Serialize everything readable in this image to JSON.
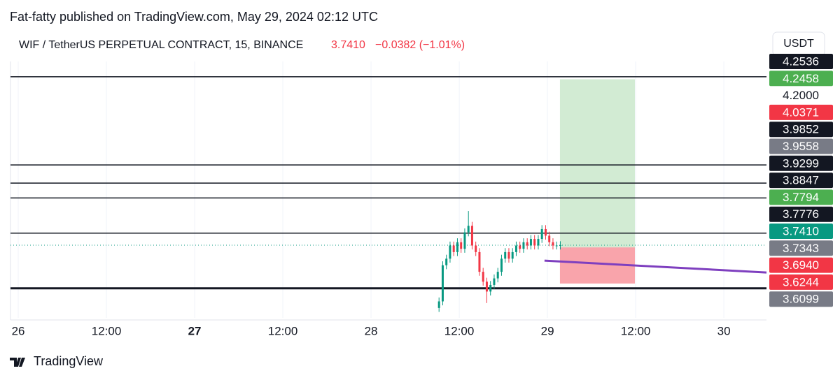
{
  "header": {
    "publisher": "Fat-fatty published on TradingView.com, May 29, 2024 02:12 UTC",
    "symbol": "WIF / TetherUS PERPETUAL CONTRACT, 15, BINANCE",
    "price": "3.7410",
    "change": "−0.0382 (−1.01%)",
    "currency_button": "USDT"
  },
  "footer": {
    "brand": "TradingView"
  },
  "price_labels": [
    {
      "text": "4.2536",
      "color": "#131722"
    },
    {
      "text": "4.2458",
      "color": "#4caf50"
    },
    {
      "text": "4.2000",
      "color": "#ffffff"
    },
    {
      "text": "4.0371",
      "color": "#f23645"
    },
    {
      "text": "3.9852",
      "color": "#131722"
    },
    {
      "text": "3.9558",
      "color": "#787b86"
    },
    {
      "text": "3.9299",
      "color": "#131722"
    },
    {
      "text": "3.8847",
      "color": "#131722"
    },
    {
      "text": "3.7794",
      "color": "#4caf50"
    },
    {
      "text": "3.7776",
      "color": "#131722"
    },
    {
      "text": "3.7410",
      "color": "#089981"
    },
    {
      "text": "3.7343",
      "color": "#787b86"
    },
    {
      "text": "3.6940",
      "color": "#f23645"
    },
    {
      "text": "3.6244",
      "color": "#f23645"
    },
    {
      "text": "3.6099",
      "color": "#787b86"
    }
  ],
  "chart_data": {
    "type": "candlestick",
    "xlim": [
      -1.05,
      101.8
    ],
    "ylim": [
      3.52,
      4.3
    ],
    "xticks": [
      {
        "value": 0,
        "label": "26"
      },
      {
        "value": 12,
        "label": "12:00"
      },
      {
        "value": 24,
        "label": "27"
      },
      {
        "value": 36,
        "label": "12:00"
      },
      {
        "value": 48,
        "label": "28"
      },
      {
        "value": 60,
        "label": "12:00"
      },
      {
        "value": 72,
        "label": "29"
      },
      {
        "value": 84,
        "label": "12:00"
      },
      {
        "value": 96,
        "label": "30"
      }
    ],
    "up_color": "#089981",
    "down_color": "#f23645",
    "x": [
      57.25,
      57.75,
      58.25,
      58.75,
      59.25,
      59.75,
      60.25,
      60.75,
      61.25,
      61.75,
      62.25,
      62.75,
      63.25,
      63.75,
      64.25,
      64.75,
      65.25,
      65.75,
      66.25,
      66.75,
      67.25,
      67.75,
      68.25,
      68.75,
      69.25,
      69.75,
      70.25,
      70.75,
      71.25,
      71.75,
      72.25,
      72.75,
      73.25,
      73.75
    ],
    "open": [
      3.55,
      3.57,
      3.68,
      3.7,
      3.74,
      3.72,
      3.75,
      3.73,
      3.78,
      3.8,
      3.74,
      3.72,
      3.66,
      3.63,
      3.6,
      3.62,
      3.64,
      3.66,
      3.7,
      3.72,
      3.7,
      3.72,
      3.74,
      3.73,
      3.75,
      3.74,
      3.76,
      3.74,
      3.76,
      3.79,
      3.77,
      3.75,
      3.74,
      3.74
    ],
    "high": [
      3.582,
      3.692,
      3.712,
      3.752,
      3.752,
      3.762,
      3.762,
      3.792,
      3.845,
      3.812,
      3.752,
      3.732,
      3.672,
      3.642,
      3.632,
      3.652,
      3.672,
      3.712,
      3.732,
      3.732,
      3.732,
      3.752,
      3.752,
      3.762,
      3.762,
      3.772,
      3.772,
      3.772,
      3.802,
      3.802,
      3.782,
      3.762,
      3.752,
      3.753
    ],
    "low": [
      3.538,
      3.558,
      3.668,
      3.688,
      3.708,
      3.708,
      3.718,
      3.718,
      3.768,
      3.728,
      3.708,
      3.648,
      3.618,
      3.565,
      3.588,
      3.608,
      3.628,
      3.648,
      3.688,
      3.688,
      3.688,
      3.708,
      3.718,
      3.718,
      3.728,
      3.728,
      3.728,
      3.728,
      3.748,
      3.758,
      3.738,
      3.728,
      3.728,
      3.728
    ],
    "close": [
      3.57,
      3.68,
      3.7,
      3.74,
      3.72,
      3.75,
      3.73,
      3.78,
      3.8,
      3.74,
      3.72,
      3.66,
      3.63,
      3.6,
      3.62,
      3.64,
      3.66,
      3.7,
      3.72,
      3.7,
      3.72,
      3.74,
      3.73,
      3.75,
      3.74,
      3.76,
      3.74,
      3.76,
      3.79,
      3.77,
      3.75,
      3.74,
      3.74,
      3.741
    ],
    "horizontal_lines": [
      4.2536,
      3.9852,
      3.9299,
      3.8847,
      3.7776,
      3.6099
    ],
    "last_price": 3.741,
    "position": {
      "x0": 73.7,
      "x1": 83.9,
      "entry": 3.7343,
      "target": 4.2458,
      "stop": 3.6244
    },
    "trend_line": {
      "x": [
        71.6,
        101.8
      ],
      "y": [
        3.694,
        3.658
      ],
      "color": "#7e3fbf"
    }
  }
}
